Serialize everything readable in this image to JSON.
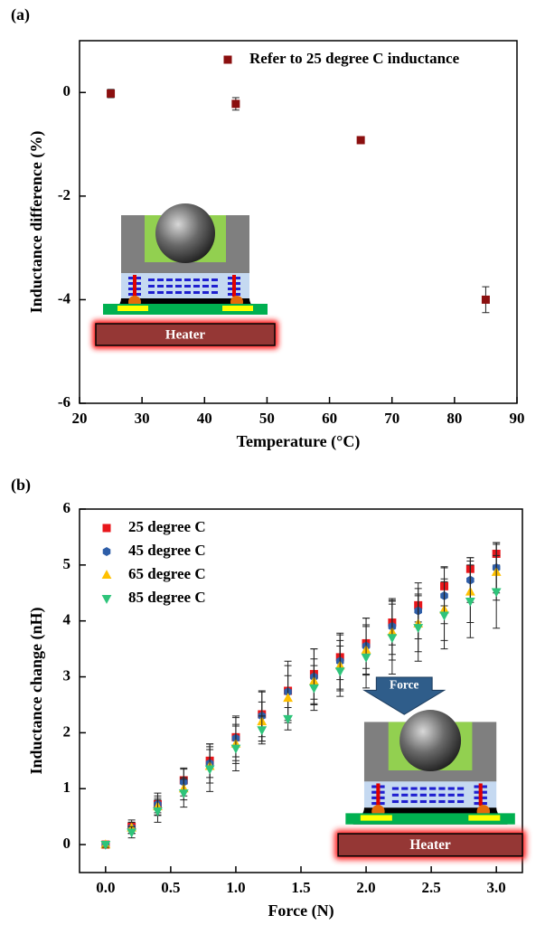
{
  "chart_data": [
    {
      "type": "scatter",
      "title": "(a)",
      "x_label": "Temperature (°C)",
      "y_label": "Inductance difference (%)",
      "x": [
        25,
        45,
        65,
        85
      ],
      "series": [
        {
          "name": "Refer to 25 degree C inductance",
          "color": "#8b0f0f",
          "marker": "square",
          "values": [
            -0.02,
            -0.22,
            -0.92,
            -4.0
          ],
          "errors": [
            0.08,
            0.12,
            0.03,
            0.25
          ]
        }
      ],
      "xlim": [
        20,
        90
      ],
      "ylim": [
        -6,
        1
      ],
      "xticks": [
        20,
        30,
        40,
        50,
        60,
        70,
        80,
        90
      ],
      "yticks": [
        -6,
        -4,
        -2,
        0
      ],
      "legend": "upper right",
      "annotations": [
        "Heater"
      ]
    },
    {
      "type": "scatter",
      "title": "(b)",
      "x_label": "Force (N)",
      "y_label": "Inductance change (nH)",
      "x": [
        0,
        0.2,
        0.4,
        0.6,
        0.8,
        1.0,
        1.2,
        1.4,
        1.6,
        1.8,
        2.0,
        2.2,
        2.4,
        2.6,
        2.8,
        3.0
      ],
      "series": [
        {
          "name": "25 degree C",
          "color": "#e8161b",
          "marker": "square",
          "values": [
            0,
            0.32,
            0.72,
            1.15,
            1.5,
            1.92,
            2.33,
            2.75,
            3.05,
            3.35,
            3.6,
            3.97,
            4.28,
            4.62,
            4.93,
            5.2
          ],
          "errors": [
            0.05,
            0.12,
            0.15,
            0.2,
            0.3,
            0.35,
            0.4,
            0.45,
            0.45,
            0.4,
            0.45,
            0.4,
            0.3,
            0.35,
            0.2,
            0.2
          ]
        },
        {
          "name": "45 degree C",
          "color": "#2e5ea8",
          "marker": "hexagon",
          "values": [
            0,
            0.3,
            0.72,
            1.12,
            1.45,
            1.9,
            2.3,
            2.73,
            3.0,
            3.28,
            3.55,
            3.9,
            4.18,
            4.45,
            4.73,
            4.95
          ],
          "errors": [
            0.05,
            0.1,
            0.2,
            0.25,
            0.35,
            0.4,
            0.45,
            0.55,
            0.5,
            0.5,
            0.5,
            0.5,
            0.5,
            0.5,
            0.4,
            0.45
          ]
        },
        {
          "name": "65 degree C",
          "color": "#ffc000",
          "marker": "triangle-up",
          "values": [
            0,
            0.3,
            0.68,
            1.0,
            1.4,
            1.8,
            2.2,
            2.62,
            2.92,
            3.2,
            3.48,
            3.8,
            3.95,
            4.2,
            4.52,
            4.87
          ],
          "errors": [
            0.05,
            0.1,
            0.15,
            0.2,
            0.3,
            0.35,
            0.35,
            0.4,
            0.4,
            0.45,
            0.45,
            0.5,
            0.5,
            0.55,
            0.55,
            0.5
          ]
        },
        {
          "name": "85 degree C",
          "color": "#2ec47a",
          "marker": "triangle-down",
          "values": [
            0,
            0.22,
            0.6,
            0.92,
            1.35,
            1.72,
            2.05,
            2.25,
            2.8,
            3.1,
            3.35,
            3.7,
            3.88,
            4.1,
            4.35,
            4.52
          ],
          "errors": [
            0.05,
            0.1,
            0.2,
            0.25,
            0.4,
            0.4,
            0.25,
            0.2,
            0.4,
            0.45,
            0.55,
            0.65,
            0.6,
            0.6,
            0.65,
            0.65
          ]
        }
      ],
      "xlim": [
        -0.2,
        3.2
      ],
      "ylim": [
        -0.5,
        6
      ],
      "xticks": [
        {
          "value": 0,
          "label": "0.0"
        },
        0.5,
        {
          "value": 1,
          "label": "1.0"
        },
        1.5,
        {
          "value": 2,
          "label": "2.0"
        },
        2.5,
        {
          "value": 3,
          "label": "3.0"
        }
      ],
      "yticks": [
        0,
        1,
        2,
        3,
        4,
        5,
        6
      ],
      "legend": "upper left",
      "annotations": [
        "Force",
        "Heater"
      ]
    }
  ]
}
